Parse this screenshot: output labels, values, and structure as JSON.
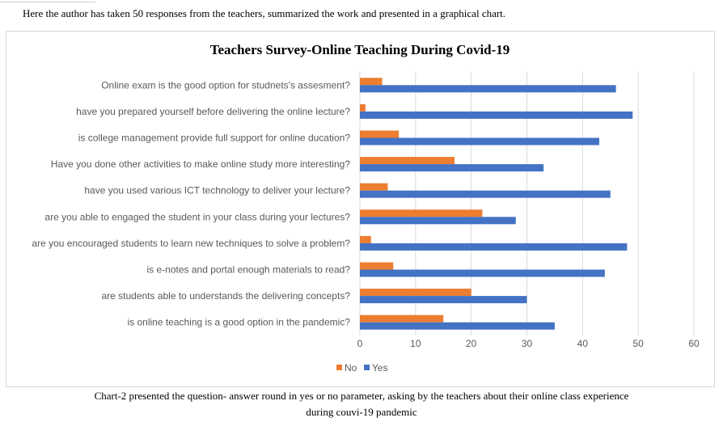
{
  "intro": "Here the author has taken 50 responses from the teachers, summarized the work and presented in a graphical chart.",
  "caption_line1": "Chart-2 presented the question- answer round in yes or no parameter, asking by the teachers about their online class experience",
  "caption_line2": "during couvi-19 pandemic",
  "chart_data": {
    "type": "bar",
    "orientation": "horizontal",
    "title": "Teachers Survey-Online Teaching During Covid-19",
    "categories": [
      "Online exam is the good option for studnets's assesment?",
      "have you prepared yourself before delivering the online lecture?",
      "is college management provide full support for online ducation?",
      "Have you done other activities to make online study more interesting?",
      "have you used various ICT technology to deliver your lecture?",
      "are you able to engaged the student in your class during your lectures?",
      "are you encouraged students to learn new techniques to solve a problem?",
      "is e-notes and portal enough materials to read?",
      "are students able to understands the delivering concepts?",
      "is online teaching is a good option in the pandemic?"
    ],
    "series": [
      {
        "name": "No",
        "color": "#ED7D31",
        "values": [
          4,
          1,
          7,
          17,
          5,
          22,
          2,
          6,
          20,
          15
        ]
      },
      {
        "name": "Yes",
        "color": "#4472C4",
        "values": [
          46,
          49,
          43,
          33,
          45,
          28,
          48,
          44,
          30,
          35
        ]
      }
    ],
    "xlim": [
      0,
      60
    ],
    "xticks": [
      "0",
      "10",
      "20",
      "30",
      "40",
      "50",
      "60"
    ],
    "grid": true,
    "legend": "bottom"
  }
}
